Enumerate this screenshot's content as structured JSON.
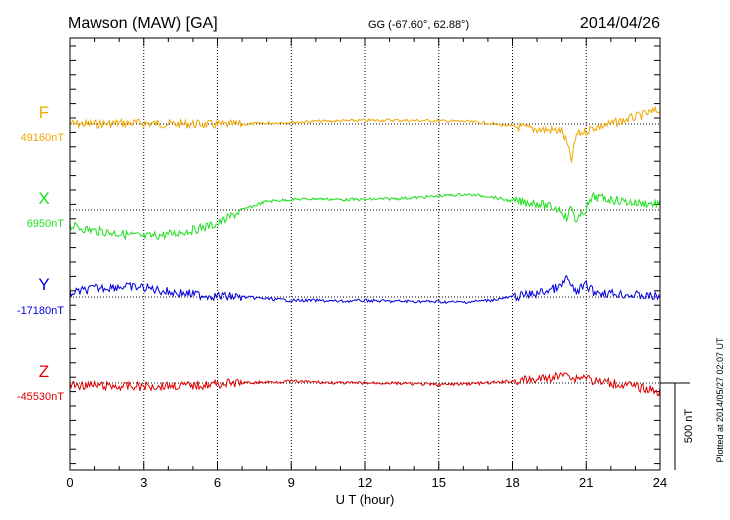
{
  "header": {
    "station": "Mawson (MAW)  [GA]",
    "coords": "GG (-67.60°,  62.88°)",
    "date": "2014/04/26"
  },
  "footer": {
    "plotted": "Plotted at 2014/05/27 02:07 UT"
  },
  "scale": {
    "label": "500 nT"
  },
  "colors": {
    "F": "#f0a800",
    "X": "#20e020",
    "Y": "#0000e0",
    "Z": "#e00000",
    "grid": "#000000"
  },
  "chart_data": {
    "type": "line",
    "xlabel": "U T (hour)",
    "xlim": [
      0,
      24
    ],
    "xticks": [
      "0",
      "3",
      "6",
      "9",
      "12",
      "15",
      "18",
      "21",
      "24"
    ],
    "scale_bar_nT": 500,
    "grid": true,
    "series": [
      {
        "name": "F",
        "baseline_label": "49160nT",
        "baseline_nT": 49160,
        "hours": [
          0,
          1,
          2,
          3,
          4,
          5,
          6,
          7,
          8,
          9,
          10,
          11,
          12,
          13,
          14,
          15,
          16,
          17,
          18,
          19,
          20,
          20.2,
          20.4,
          20.6,
          21,
          21.3,
          22,
          23,
          24
        ],
        "values": [
          49160,
          49160,
          49165,
          49165,
          49160,
          49160,
          49155,
          49158,
          49165,
          49170,
          49175,
          49178,
          49180,
          49182,
          49180,
          49178,
          49175,
          49165,
          49145,
          49130,
          49120,
          49050,
          48950,
          49100,
          49120,
          49140,
          49160,
          49200,
          49240
        ]
      },
      {
        "name": "X",
        "baseline_label": "6950nT",
        "baseline_nT": 6950,
        "hours": [
          0,
          1,
          2,
          3,
          4,
          5,
          6,
          7,
          8,
          9,
          10,
          11,
          12,
          13,
          14,
          15,
          16,
          17,
          18,
          19,
          20,
          20.2,
          20.4,
          20.6,
          21,
          21.3,
          22,
          23,
          24
        ],
        "values": [
          6860,
          6830,
          6815,
          6795,
          6810,
          6835,
          6870,
          6950,
          7000,
          7010,
          7015,
          7010,
          7010,
          7015,
          7020,
          7030,
          7040,
          7030,
          7000,
          6990,
          6950,
          6900,
          6970,
          6880,
          6960,
          7025,
          7010,
          6990,
          6985
        ]
      },
      {
        "name": "Y",
        "baseline_label": "-17180nT",
        "baseline_nT": -17180,
        "hours": [
          0,
          1,
          2,
          3,
          4,
          5,
          6,
          7,
          8,
          9,
          10,
          11,
          12,
          13,
          14,
          15,
          16,
          17,
          18,
          19,
          20,
          20.2,
          20.4,
          20.6,
          21,
          21.3,
          22,
          23,
          24
        ],
        "values": [
          -17160,
          -17130,
          -17120,
          -17125,
          -17150,
          -17165,
          -17175,
          -17180,
          -17190,
          -17200,
          -17200,
          -17205,
          -17200,
          -17205,
          -17205,
          -17208,
          -17210,
          -17200,
          -17180,
          -17160,
          -17120,
          -17060,
          -17130,
          -17150,
          -17110,
          -17150,
          -17160,
          -17170,
          -17180
        ]
      },
      {
        "name": "Z",
        "baseline_label": "-45530nT",
        "baseline_nT": -45530,
        "hours": [
          0,
          1,
          2,
          3,
          4,
          5,
          6,
          7,
          8,
          9,
          10,
          11,
          12,
          13,
          14,
          15,
          16,
          17,
          18,
          19,
          20,
          20.2,
          20.4,
          20.6,
          21,
          21.3,
          22,
          23,
          24
        ],
        "values": [
          -45540,
          -45545,
          -45550,
          -45550,
          -45545,
          -45545,
          -45535,
          -45530,
          -45525,
          -45520,
          -45525,
          -45530,
          -45530,
          -45530,
          -45535,
          -45540,
          -45535,
          -45530,
          -45520,
          -45510,
          -45490,
          -45450,
          -45510,
          -45500,
          -45490,
          -45520,
          -45530,
          -45550,
          -45580
        ]
      }
    ]
  }
}
